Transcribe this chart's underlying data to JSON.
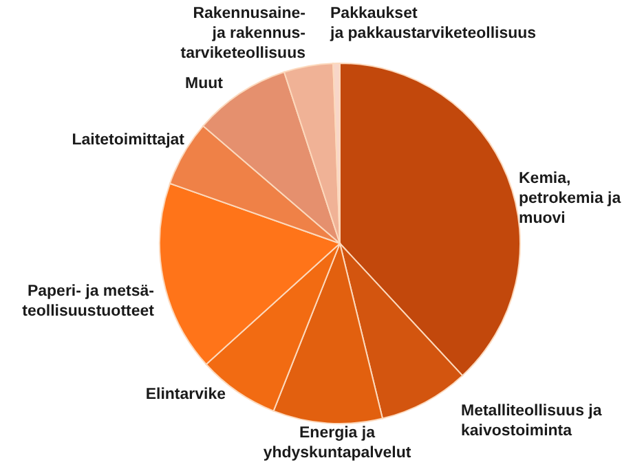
{
  "chart_data": {
    "type": "pie",
    "categories": [
      "Kemia, petrokemia ja muovi",
      "Metalliteollisuus ja kaivostoiminta",
      "Energia ja yhdyskuntapalvelut",
      "Elintarvike",
      "Paperi- ja metsä-teollisuustuotteet",
      "Laitetoimittajat",
      "Muut",
      "Rakennusaine- ja rakennus-tarviketeollisuus",
      "Pakkaukset ja pakkaustarviketeollisuus"
    ],
    "values": [
      38.1,
      8.1,
      9.8,
      7.3,
      17.1,
      5.9,
      8.7,
      4.4,
      0.6
    ],
    "colors": [
      "#c2480c",
      "#d3550f",
      "#e2600f",
      "#f26b12",
      "#ff7419",
      "#ef8147",
      "#e5906e",
      "#f0b296",
      "#f8d6c8"
    ]
  }
}
